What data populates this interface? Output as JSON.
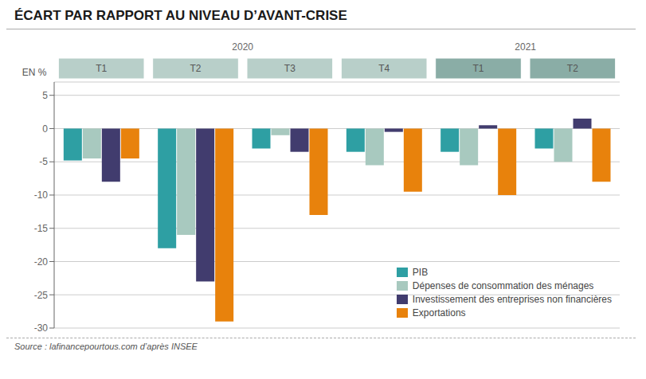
{
  "chart_data": {
    "type": "bar",
    "title": "ÉCART PAR RAPPORT AU NIVEAU D’AVANT-CRISE",
    "ylabel": "EN %",
    "source": "Source : lafinancepourtous.com d’après INSEE",
    "categories": [
      "T1",
      "T2",
      "T3",
      "T4",
      "T1",
      "T2"
    ],
    "category_groups": [
      "2020",
      "2020",
      "2020",
      "2020",
      "2021",
      "2021"
    ],
    "group_colors": [
      "#b8cfc9",
      "#8aada6"
    ],
    "series": [
      {
        "name": "PIB",
        "color": "#2e9fa3",
        "values": [
          -4.8,
          -18.0,
          -3.0,
          -3.5,
          -3.5,
          -3.0
        ]
      },
      {
        "name": "Dépenses de consommation des ménages",
        "color": "#a8c9bf",
        "values": [
          -4.5,
          -16.0,
          -1.0,
          -5.5,
          -5.5,
          -5.0
        ]
      },
      {
        "name": "Investissement des entreprises non financières",
        "color": "#413c6e",
        "values": [
          -8.0,
          -23.0,
          -3.5,
          -0.5,
          0.5,
          1.5
        ]
      },
      {
        "name": "Exportations",
        "color": "#e8820c",
        "values": [
          -4.5,
          -29.0,
          -13.0,
          -9.5,
          -10.0,
          -8.0
        ]
      }
    ],
    "ylim": [
      -30,
      7
    ],
    "yticks": [
      -30,
      -25,
      -20,
      -15,
      -10,
      -5,
      0,
      5
    ],
    "grid": true,
    "legend": "lower right"
  }
}
